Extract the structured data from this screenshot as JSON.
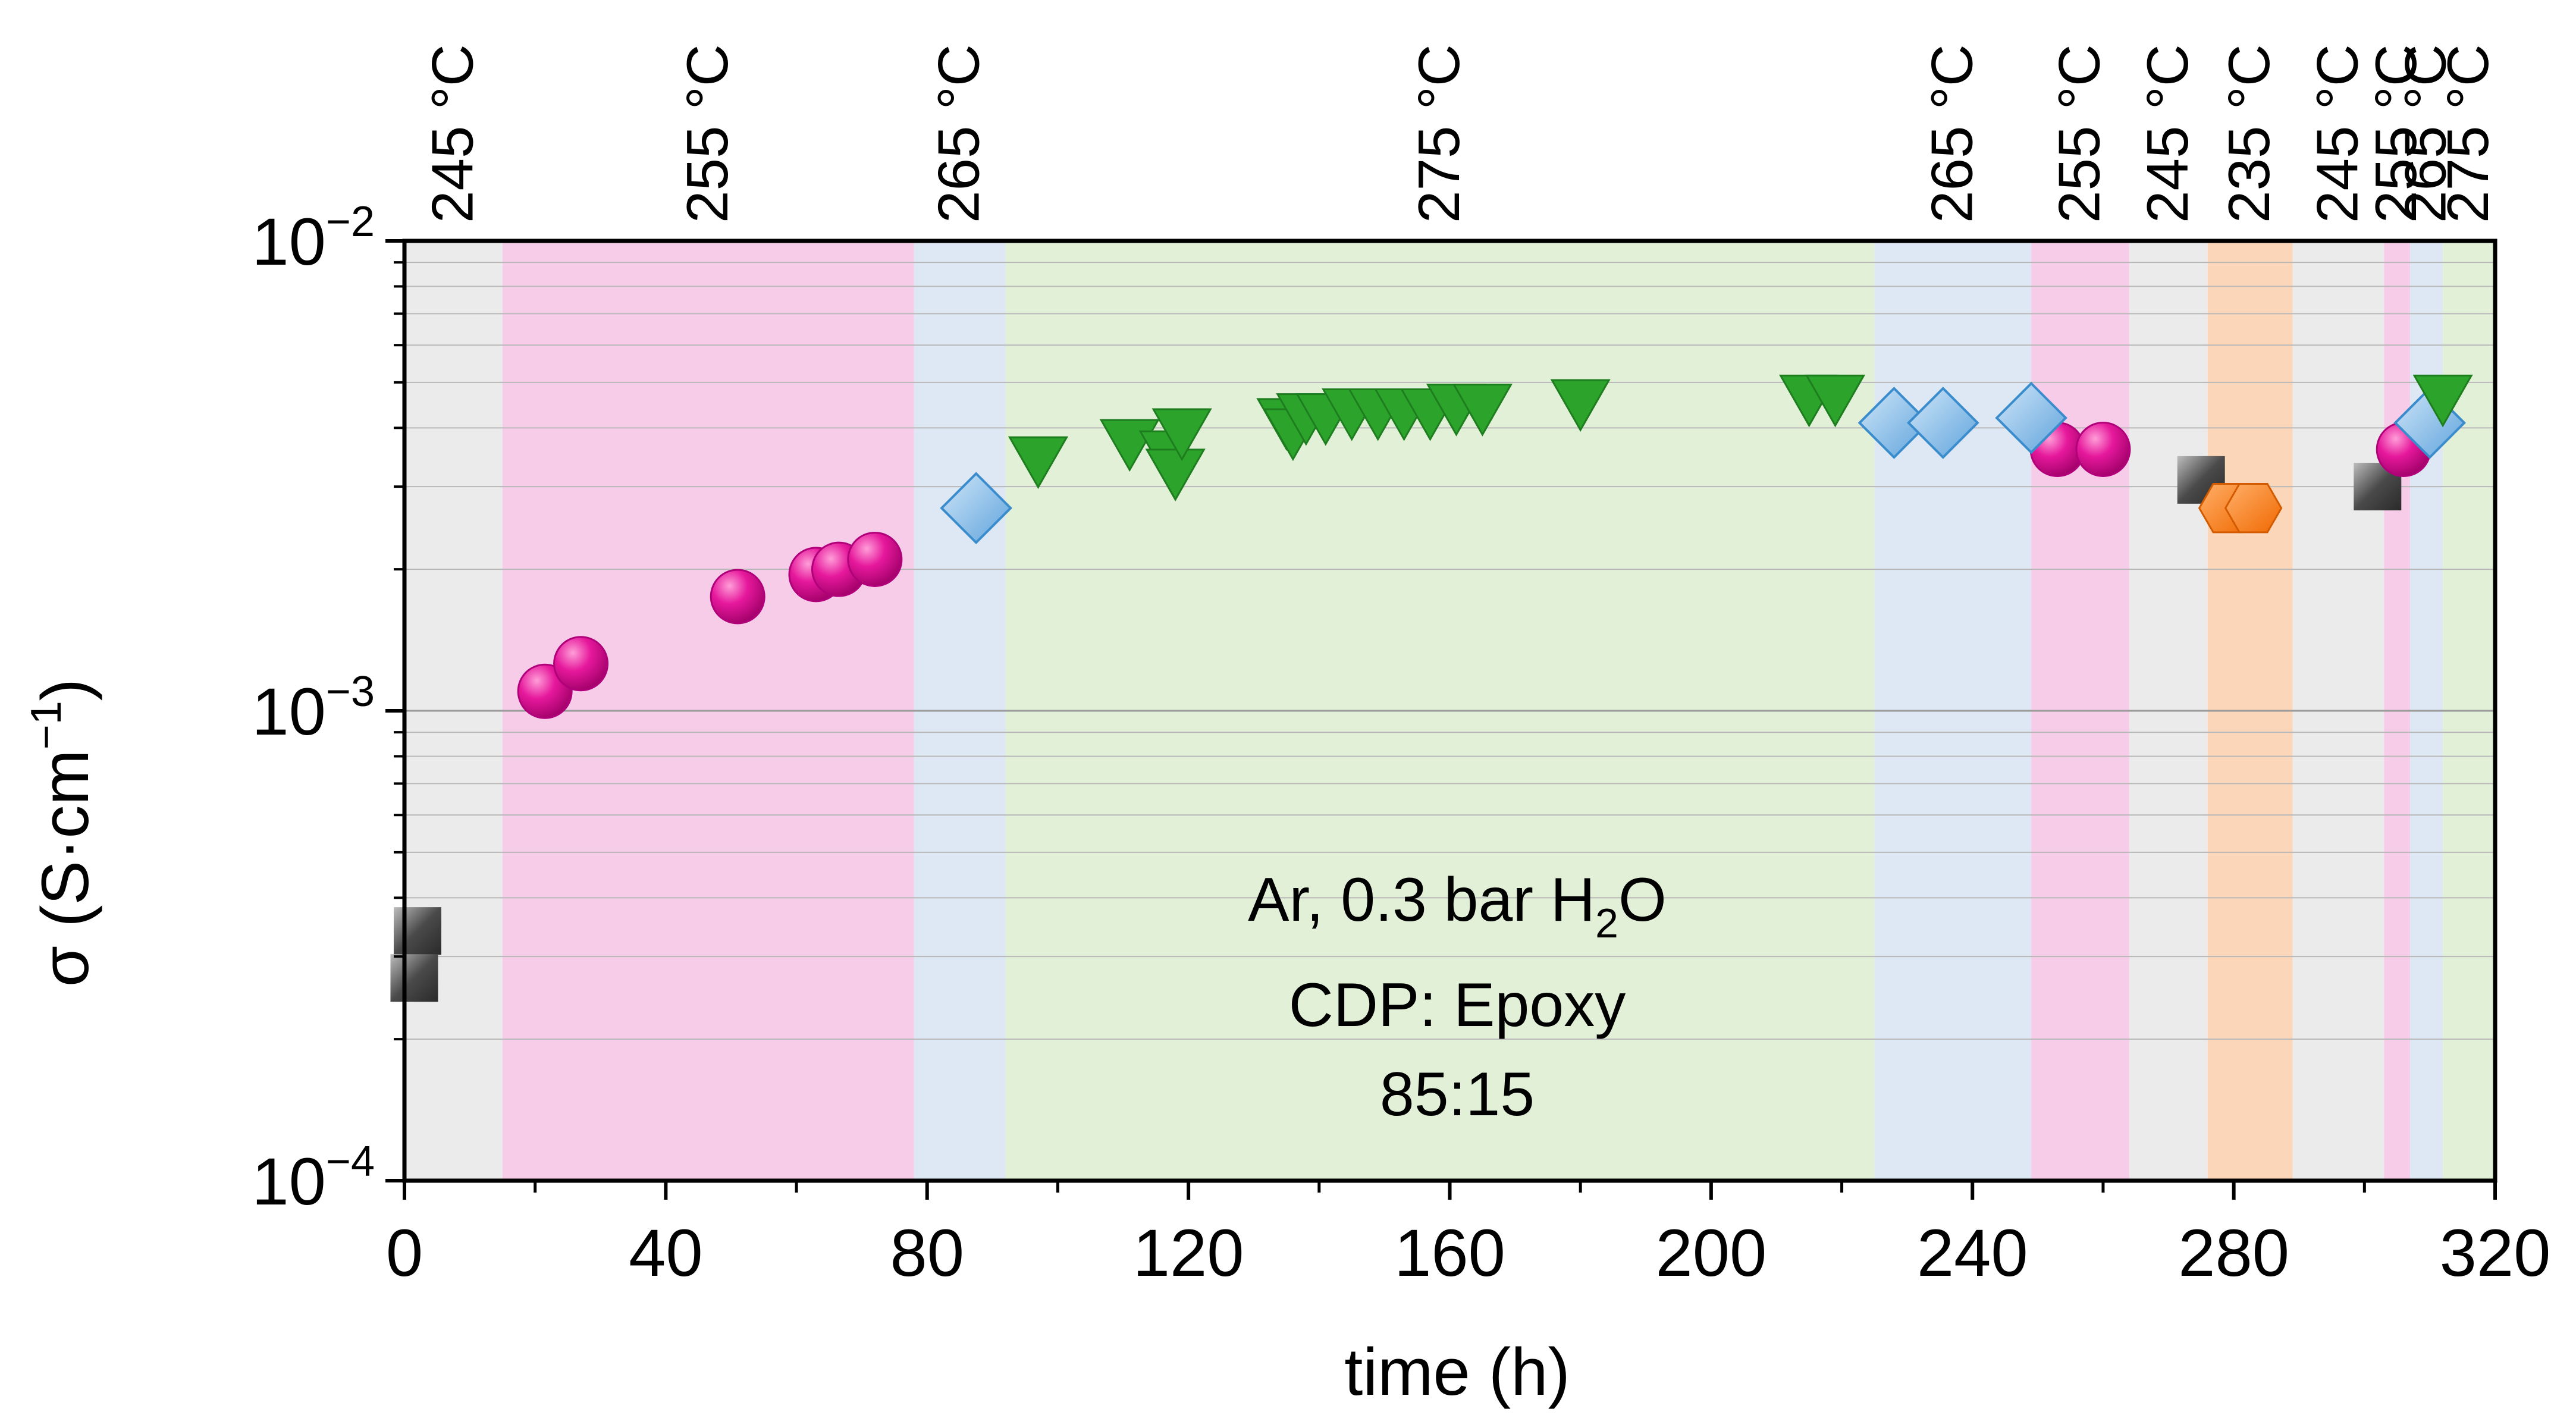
{
  "chart_data": {
    "type": "scatter",
    "xlabel": "time (h)",
    "ylabel_prefix": "σ (S·cm",
    "ylabel_sup": "−1",
    "ylabel_suffix": ")",
    "yscale": "log",
    "xlim": [
      0,
      320
    ],
    "ylim": [
      0.0001,
      0.01
    ],
    "x_ticks": [
      0,
      40,
      80,
      120,
      160,
      200,
      240,
      280,
      320
    ],
    "y_ticks": [
      {
        "value": 0.01,
        "base": "10",
        "exp": "−2"
      },
      {
        "value": 0.001,
        "base": "10",
        "exp": "−3"
      },
      {
        "value": 0.0001,
        "base": "10",
        "exp": "−4"
      }
    ],
    "annotations": {
      "atmosphere_prefix": "Ar, 0.3 bar H",
      "atmosphere_sub": "2",
      "atmosphere_suffix": "O",
      "membrane_line1": "CDP: Epoxy",
      "membrane_line2": "85:15"
    },
    "temperature_bands": [
      {
        "label": "245 °C",
        "x0": 0,
        "x1": 15,
        "color": "#ebebeb"
      },
      {
        "label": "255 °C",
        "x0": 15,
        "x1": 78,
        "color": "#f7cce9"
      },
      {
        "label": "265 °C",
        "x0": 78,
        "x1": 92,
        "color": "#dde8f4"
      },
      {
        "label": "275 °C",
        "x0": 92,
        "x1": 225,
        "color": "#e2f0d8"
      },
      {
        "label": "265 °C",
        "x0": 225,
        "x1": 249,
        "color": "#dde8f4"
      },
      {
        "label": "255 °C",
        "x0": 249,
        "x1": 264,
        "color": "#f7cce9"
      },
      {
        "label": "245 °C",
        "x0": 264,
        "x1": 276,
        "color": "#ebebeb"
      },
      {
        "label": "235 °C",
        "x0": 276,
        "x1": 289,
        "color": "#fcd6b8"
      },
      {
        "label": "245 °C",
        "x0": 289,
        "x1": 303,
        "color": "#ebebeb"
      },
      {
        "label": "255 °C",
        "x0": 303,
        "x1": 307,
        "color": "#f7cce9"
      },
      {
        "label": "265 °C",
        "x0": 307,
        "x1": 312,
        "color": "#dde8f4"
      },
      {
        "label": "275 °C",
        "x0": 312,
        "x1": 320,
        "color": "#e2f0d8"
      }
    ],
    "series": [
      {
        "name": "245 °C",
        "marker": "square",
        "color": "#5a5a5a",
        "points": [
          [
            2,
            0.00034
          ],
          [
            1.5,
            0.00027
          ],
          [
            275,
            0.0031
          ],
          [
            302,
            0.003
          ]
        ]
      },
      {
        "name": "255 °C",
        "marker": "circle",
        "color": "#e0199a",
        "points": [
          [
            21.5,
            0.0011
          ],
          [
            27,
            0.00126
          ],
          [
            51,
            0.00175
          ],
          [
            63,
            0.00195
          ],
          [
            66.5,
            0.002
          ],
          [
            72,
            0.0021
          ],
          [
            253,
            0.0036
          ],
          [
            260,
            0.0036
          ],
          [
            306,
            0.0036
          ]
        ]
      },
      {
        "name": "265 °C",
        "marker": "diamond",
        "color": "#8fbde6",
        "points": [
          [
            87.5,
            0.0027
          ],
          [
            228,
            0.0041
          ],
          [
            235.5,
            0.0041
          ],
          [
            249,
            0.0042
          ],
          [
            310,
            0.0041
          ]
        ]
      },
      {
        "name": "275 °C",
        "marker": "triangle-down",
        "color": "#2ca02c",
        "points": [
          [
            97,
            0.0034
          ],
          [
            111,
            0.0037
          ],
          [
            117,
            0.0035
          ],
          [
            118,
            0.0032
          ],
          [
            119,
            0.0039
          ],
          [
            135,
            0.0041
          ],
          [
            136,
            0.0039
          ],
          [
            138,
            0.0042
          ],
          [
            141,
            0.0042
          ],
          [
            145,
            0.0043
          ],
          [
            149,
            0.0043
          ],
          [
            153,
            0.0043
          ],
          [
            157,
            0.0043
          ],
          [
            161,
            0.0044
          ],
          [
            165,
            0.0044
          ],
          [
            180,
            0.0045
          ],
          [
            215,
            0.0046
          ],
          [
            219,
            0.0046
          ],
          [
            312,
            0.0046
          ]
        ]
      },
      {
        "name": "235 °C",
        "marker": "hexagon",
        "color": "#ff7f27",
        "points": [
          [
            279,
            0.0027
          ],
          [
            283,
            0.0027
          ]
        ]
      }
    ]
  }
}
